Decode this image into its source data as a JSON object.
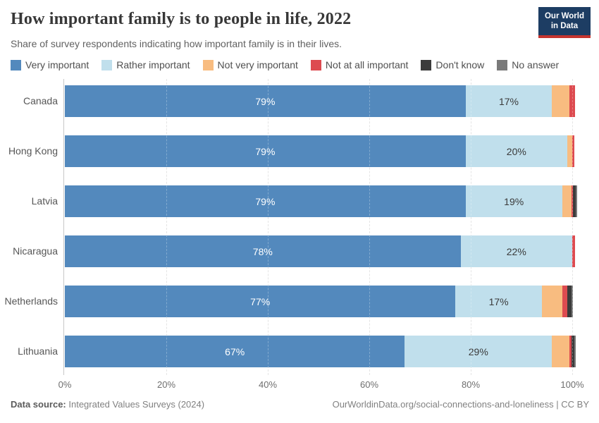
{
  "header": {
    "title": "How important family is to people in life, 2022",
    "subtitle": "Share of survey respondents indicating how important family is in their lives."
  },
  "logo": {
    "line1": "Our World",
    "line2": "in Data",
    "bg_color": "#1d3d63",
    "accent_color": "#c5352f"
  },
  "legend": {
    "items": [
      {
        "label": "Very important",
        "color": "#5389bd"
      },
      {
        "label": "Rather important",
        "color": "#c0dfec"
      },
      {
        "label": "Not very important",
        "color": "#f8bc80"
      },
      {
        "label": "Not at all important",
        "color": "#dd4b50"
      },
      {
        "label": "Don't know",
        "color": "#3b3b3b"
      },
      {
        "label": "No answer",
        "color": "#7a7a7a"
      }
    ]
  },
  "chart_data": {
    "type": "bar",
    "orientation": "horizontal",
    "stacked": true,
    "title": "How important family is to people in life, 2022",
    "categories": [
      "Canada",
      "Hong Kong",
      "Latvia",
      "Nicaragua",
      "Netherlands",
      "Lithuania"
    ],
    "series": [
      {
        "name": "Very important",
        "color": "#5389bd",
        "text_color": "#ffffff",
        "values": [
          79,
          79,
          79,
          78,
          77,
          67
        ]
      },
      {
        "name": "Rather important",
        "color": "#c0dfec",
        "text_color": "#3a3a3a",
        "values": [
          17,
          20,
          19,
          22,
          17,
          29
        ]
      },
      {
        "name": "Not very important",
        "color": "#f8bc80",
        "text_color": "#3a3a3a",
        "values": [
          3.4,
          1.0,
          1.8,
          0.0,
          4.0,
          3.4
        ]
      },
      {
        "name": "Not at all important",
        "color": "#dd4b50",
        "text_color": "#ffffff",
        "values": [
          1.2,
          0.4,
          0.3,
          0.6,
          1.0,
          0.5
        ]
      },
      {
        "name": "Don't know",
        "color": "#3b3b3b",
        "text_color": "#ffffff",
        "values": [
          0,
          0,
          0.6,
          0,
          0.8,
          0.5
        ]
      },
      {
        "name": "No answer",
        "color": "#7a7a7a",
        "text_color": "#ffffff",
        "values": [
          0,
          0,
          0.3,
          0,
          0.4,
          0.3
        ]
      }
    ],
    "visible_bar_labels": {
      "Canada": [
        "79%",
        "17%"
      ],
      "Hong Kong": [
        "79%",
        "20%"
      ],
      "Latvia": [
        "79%",
        "19%"
      ],
      "Nicaragua": [
        "78%",
        "22%"
      ],
      "Netherlands": [
        "77%",
        "17%"
      ],
      "Lithuania": [
        "67%",
        "29%"
      ]
    },
    "label_threshold_pct": 10,
    "xlabel": "",
    "ylabel": "",
    "x_ticks": [
      "0%",
      "20%",
      "40%",
      "60%",
      "80%",
      "100%"
    ],
    "x_tick_values": [
      0,
      20,
      40,
      60,
      80,
      100
    ],
    "xlim": [
      0,
      100
    ],
    "grid": "vertical-dashed",
    "legend_position": "top"
  },
  "footer": {
    "source_label": "Data source:",
    "source_value": " Integrated Values Surveys (2024)",
    "credit": "OurWorldinData.org/social-connections-and-loneliness | CC BY"
  }
}
